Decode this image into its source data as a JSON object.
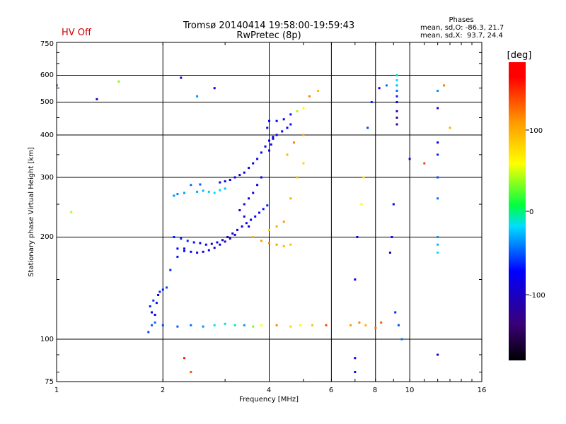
{
  "status_text": "HV Off",
  "colors": {
    "status": "#cc0000",
    "axes": "#000000",
    "background": "#ffffff"
  },
  "chart_data": {
    "type": "scatter",
    "title": "Tromsø 20140414 19:58:00-19:59:43",
    "subtitle": "RwPretec (8p)",
    "xlabel": "Frequency [MHz]",
    "ylabel": "Stationary phase Virtual Height [km]",
    "x_scale": "log",
    "y_scale": "log",
    "xlim": [
      1,
      16
    ],
    "ylim": [
      75,
      750
    ],
    "x_ticks": [
      1,
      2,
      4,
      6,
      8,
      10,
      16
    ],
    "x_tick_labels": [
      "1",
      "2",
      "4",
      "6",
      "8",
      "10",
      "16"
    ],
    "y_ticks": [
      75,
      100,
      200,
      300,
      400,
      500,
      600,
      750
    ],
    "y_tick_labels": [
      "75",
      "100",
      "200",
      "300",
      "400",
      "500",
      "600",
      "750"
    ],
    "x_grid": [
      2,
      4,
      6,
      8,
      10
    ],
    "y_grid": [
      100,
      200,
      300,
      400,
      500,
      600
    ],
    "grid": true,
    "phases_box": {
      "title": "Phases",
      "line1": "mean, sd,O: -86.3, 21.7",
      "line2": "mean, sd,X:  93.7, 24.4"
    },
    "colorbar": {
      "label": "[deg]",
      "range": [
        -180,
        180
      ],
      "ticks": [
        100,
        0,
        -100
      ],
      "tick_labels": [
        "100",
        "0",
        "-100"
      ]
    },
    "series": [
      {
        "values": [
          [
            1.82,
            105,
            -80
          ],
          [
            1.86,
            110,
            -75
          ],
          [
            1.9,
            112,
            -70
          ],
          [
            1.84,
            125,
            -90
          ],
          [
            1.88,
            130,
            -85
          ],
          [
            1.92,
            128,
            -95
          ],
          [
            1.96,
            138,
            -88
          ],
          [
            2.0,
            140,
            -92
          ],
          [
            2.05,
            142,
            -80
          ],
          [
            1.86,
            120,
            -100
          ],
          [
            1.9,
            118,
            -105
          ],
          [
            1.94,
            135,
            -110
          ],
          [
            2.1,
            160,
            -90
          ],
          [
            2.2,
            175,
            -95
          ],
          [
            2.3,
            185,
            -100
          ],
          [
            2.15,
            200,
            -95
          ],
          [
            2.25,
            198,
            -90
          ],
          [
            2.35,
            195,
            -92
          ],
          [
            2.45,
            193,
            -96
          ],
          [
            2.55,
            192,
            -100
          ],
          [
            2.65,
            190,
            -105
          ],
          [
            2.75,
            191,
            -110
          ],
          [
            2.85,
            193,
            -112
          ],
          [
            2.95,
            196,
            -115
          ],
          [
            3.05,
            200,
            -118
          ],
          [
            3.15,
            205,
            -120
          ],
          [
            3.25,
            210,
            -115
          ],
          [
            3.35,
            215,
            -110
          ],
          [
            3.45,
            220,
            -108
          ],
          [
            3.55,
            225,
            -105
          ],
          [
            3.65,
            230,
            -100
          ],
          [
            3.75,
            236,
            -98
          ],
          [
            3.85,
            242,
            -95
          ],
          [
            3.95,
            248,
            -92
          ],
          [
            2.2,
            185,
            -100
          ],
          [
            2.3,
            182,
            -95
          ],
          [
            2.4,
            181,
            -98
          ],
          [
            2.5,
            180,
            -102
          ],
          [
            2.6,
            181,
            -106
          ],
          [
            2.7,
            183,
            -110
          ],
          [
            2.8,
            186,
            -112
          ],
          [
            2.9,
            190,
            -115
          ],
          [
            3.0,
            194,
            -118
          ],
          [
            3.1,
            198,
            -120
          ],
          [
            3.2,
            203,
            -116
          ],
          [
            2.15,
            265,
            -60
          ],
          [
            2.2,
            268,
            -62
          ],
          [
            2.3,
            270,
            -58
          ],
          [
            2.5,
            272,
            -55
          ],
          [
            2.6,
            274,
            -50
          ],
          [
            2.7,
            272,
            -45
          ],
          [
            2.8,
            270,
            -40
          ],
          [
            2.9,
            275,
            -42
          ],
          [
            3.0,
            278,
            -48
          ],
          [
            2.4,
            285,
            -70
          ],
          [
            2.55,
            286,
            -75
          ],
          [
            2.9,
            290,
            -110
          ],
          [
            3.0,
            292,
            -115
          ],
          [
            3.1,
            295,
            -112
          ],
          [
            3.2,
            300,
            -108
          ],
          [
            3.3,
            305,
            -105
          ],
          [
            3.4,
            310,
            -110
          ],
          [
            3.5,
            320,
            -115
          ],
          [
            3.6,
            330,
            -112
          ],
          [
            3.7,
            340,
            -110
          ],
          [
            3.8,
            355,
            -108
          ],
          [
            3.9,
            370,
            -105
          ],
          [
            4.0,
            385,
            -110
          ],
          [
            4.1,
            395,
            -112
          ],
          [
            4.2,
            400,
            -108
          ],
          [
            4.35,
            410,
            -105
          ],
          [
            4.5,
            420,
            -100
          ],
          [
            4.6,
            430,
            -95
          ],
          [
            3.3,
            240,
            -120
          ],
          [
            3.4,
            250,
            -118
          ],
          [
            3.5,
            260,
            -115
          ],
          [
            3.6,
            270,
            -112
          ],
          [
            3.7,
            285,
            -110
          ],
          [
            3.8,
            300,
            -108
          ],
          [
            3.4,
            230,
            -115
          ],
          [
            3.5,
            215,
            -110
          ],
          [
            4.0,
            360,
            -110
          ],
          [
            4.05,
            375,
            -115
          ],
          [
            4.1,
            390,
            -108
          ],
          [
            3.95,
            420,
            -112
          ],
          [
            4.0,
            440,
            -105
          ],
          [
            4.2,
            440,
            -100
          ],
          [
            4.4,
            445,
            -110
          ],
          [
            4.6,
            460,
            -95
          ],
          [
            4.8,
            470,
            40
          ],
          [
            5.0,
            480,
            60
          ],
          [
            2.0,
            110,
            -80
          ],
          [
            2.2,
            109,
            -75
          ],
          [
            2.4,
            110,
            -70
          ],
          [
            2.6,
            109,
            -60
          ],
          [
            2.8,
            110,
            -40
          ],
          [
            3.0,
            111,
            -30
          ],
          [
            3.2,
            110,
            -20
          ],
          [
            3.4,
            110,
            -60
          ],
          [
            3.6,
            109,
            30
          ],
          [
            3.8,
            110,
            60
          ],
          [
            4.2,
            110,
            120
          ],
          [
            4.6,
            109,
            80
          ],
          [
            4.9,
            110,
            60
          ],
          [
            5.3,
            110,
            90
          ],
          [
            5.8,
            110,
            150
          ],
          [
            3.6,
            200,
            100
          ],
          [
            3.8,
            195,
            110
          ],
          [
            4.0,
            192,
            120
          ],
          [
            4.2,
            190,
            105
          ],
          [
            4.4,
            188,
            95
          ],
          [
            4.6,
            190,
            90
          ],
          [
            4.0,
            210,
            80
          ],
          [
            4.2,
            215,
            100
          ],
          [
            4.4,
            222,
            110
          ],
          [
            4.6,
            260,
            100
          ],
          [
            4.8,
            300,
            90
          ],
          [
            5.0,
            330,
            80
          ],
          [
            4.5,
            350,
            95
          ],
          [
            4.7,
            380,
            120
          ],
          [
            5.0,
            400,
            100
          ],
          [
            5.2,
            520,
            120
          ],
          [
            5.5,
            540,
            90
          ],
          [
            6.8,
            110,
            110
          ],
          [
            7.2,
            112,
            120
          ],
          [
            7.5,
            110,
            100
          ],
          [
            8.0,
            108,
            130
          ],
          [
            8.3,
            112,
            140
          ],
          [
            7.0,
            150,
            -110
          ],
          [
            7.1,
            200,
            -100
          ],
          [
            7.3,
            250,
            60
          ],
          [
            7.4,
            300,
            70
          ],
          [
            7.6,
            420,
            -80
          ],
          [
            7.8,
            500,
            -90
          ],
          [
            8.2,
            550,
            -100
          ],
          [
            8.6,
            560,
            -70
          ],
          [
            9.2,
            430,
            -150
          ],
          [
            9.2,
            450,
            -140
          ],
          [
            9.2,
            470,
            -130
          ],
          [
            9.2,
            500,
            -110
          ],
          [
            9.2,
            520,
            -90
          ],
          [
            9.2,
            540,
            -70
          ],
          [
            9.2,
            560,
            -50
          ],
          [
            9.2,
            580,
            -40
          ],
          [
            9.2,
            600,
            -30
          ],
          [
            8.8,
            180,
            -120
          ],
          [
            8.9,
            200,
            -110
          ],
          [
            9.0,
            250,
            -100
          ],
          [
            9.1,
            120,
            -90
          ],
          [
            9.3,
            110,
            -80
          ],
          [
            9.5,
            100,
            -70
          ],
          [
            12.0,
            180,
            -40
          ],
          [
            12.0,
            190,
            -50
          ],
          [
            12.0,
            200,
            -60
          ],
          [
            12.0,
            260,
            -70
          ],
          [
            12.0,
            300,
            -80
          ],
          [
            12.0,
            350,
            -90
          ],
          [
            12.0,
            380,
            -100
          ],
          [
            12.0,
            480,
            -110
          ],
          [
            12.0,
            540,
            -60
          ],
          [
            12.5,
            560,
            120
          ],
          [
            13.0,
            420,
            100
          ],
          [
            10.0,
            340,
            -120
          ],
          [
            11.0,
            330,
            150
          ],
          [
            12.0,
            90,
            -110
          ],
          [
            7.0,
            88,
            -100
          ],
          [
            7.0,
            80,
            -95
          ],
          [
            2.3,
            88,
            170
          ],
          [
            2.4,
            80,
            140
          ],
          [
            1.5,
            575,
            30
          ],
          [
            1.0,
            560,
            -100
          ],
          [
            1.3,
            510,
            -120
          ],
          [
            1.1,
            237,
            40
          ],
          [
            2.25,
            590,
            -120
          ],
          [
            2.5,
            520,
            -60
          ],
          [
            2.8,
            550,
            -100
          ]
        ]
      }
    ]
  }
}
